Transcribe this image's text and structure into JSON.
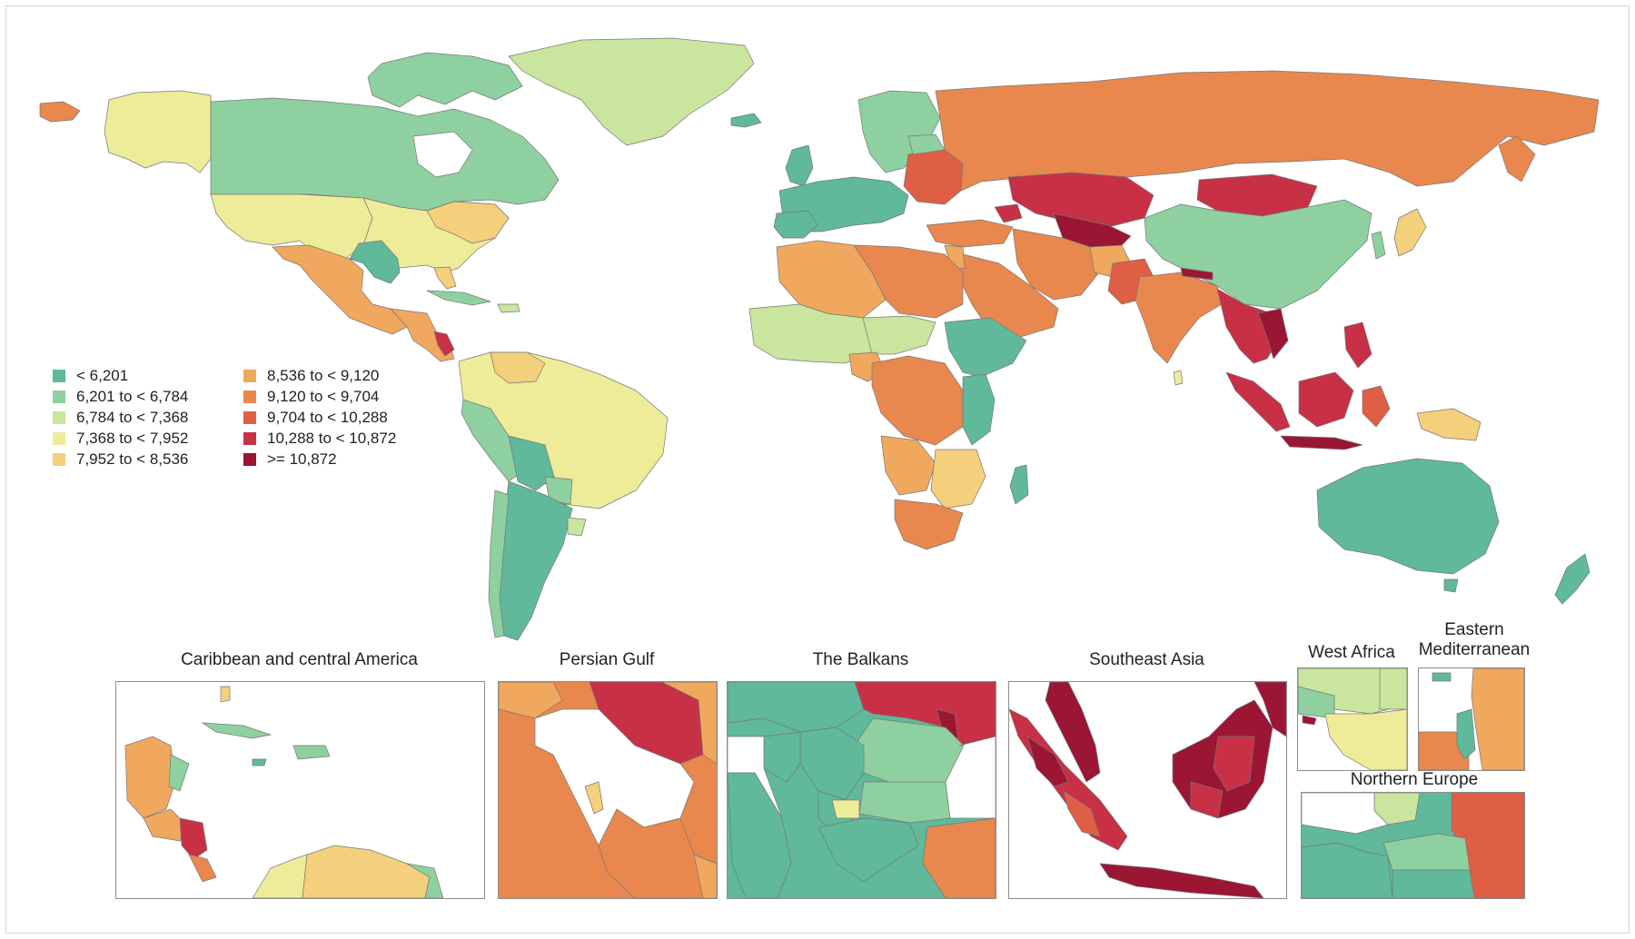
{
  "legend": {
    "items": [
      {
        "label": "< 6,201",
        "color": "#5fb99a"
      },
      {
        "label": "6,201 to < 6,784",
        "color": "#8fd0a0"
      },
      {
        "label": "6,784 to < 7,368",
        "color": "#c9e59e"
      },
      {
        "label": "7,368 to < 7,952",
        "color": "#eeec98"
      },
      {
        "label": "7,952 to < 8,536",
        "color": "#f4cf7c"
      },
      {
        "label": "8,536 to < 9,120",
        "color": "#f0a85e"
      },
      {
        "label": "9,120 to < 9,704",
        "color": "#e8884e"
      },
      {
        "label": "9,704 to < 10,288",
        "color": "#df5f45"
      },
      {
        "label": "10,288 to < 10,872",
        "color": "#c83045"
      },
      {
        "label": ">= 10,872",
        "color": "#9a1633"
      }
    ]
  },
  "insets": [
    {
      "key": "caribbean",
      "title": "Caribbean and central America"
    },
    {
      "key": "gulf",
      "title": "Persian Gulf"
    },
    {
      "key": "balkans",
      "title": "The Balkans"
    },
    {
      "key": "seasia",
      "title": "Southeast Asia"
    },
    {
      "key": "westafrica",
      "title": "West Africa"
    },
    {
      "key": "eastmed",
      "title": "Eastern\nMediterranean"
    },
    {
      "key": "northeurope",
      "title": "Northern Europe"
    }
  ]
}
